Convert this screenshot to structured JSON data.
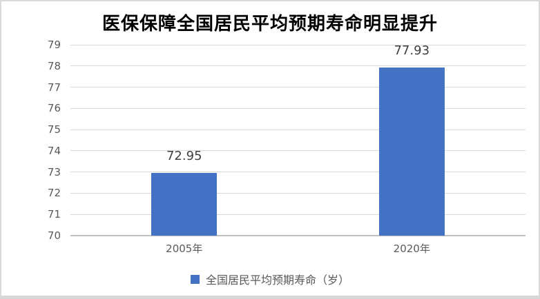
{
  "chart_data": {
    "type": "bar",
    "title": "医保保障全国居民平均预期寿命明显提升",
    "categories": [
      "2005年",
      "2020年"
    ],
    "values": [
      72.95,
      77.93
    ],
    "data_labels": [
      "72.95",
      "77.93"
    ],
    "series_name": "全国居民平均预期寿命（岁）",
    "xlabel": "",
    "ylabel": "",
    "ylim": [
      70,
      79
    ],
    "ytick_step": 1,
    "ytick_labels": [
      "70",
      "71",
      "72",
      "73",
      "74",
      "75",
      "76",
      "77",
      "78",
      "79"
    ],
    "grid": true,
    "legend_position": "bottom",
    "colors": {
      "bar": "#4472C4",
      "gridline": "#d9d9d9",
      "axis_line": "#bfbfbf",
      "tick_text": "#595959",
      "data_label_text": "#3f3f3f",
      "title_text": "#000000",
      "frame_border": "#d9d9d9"
    }
  }
}
